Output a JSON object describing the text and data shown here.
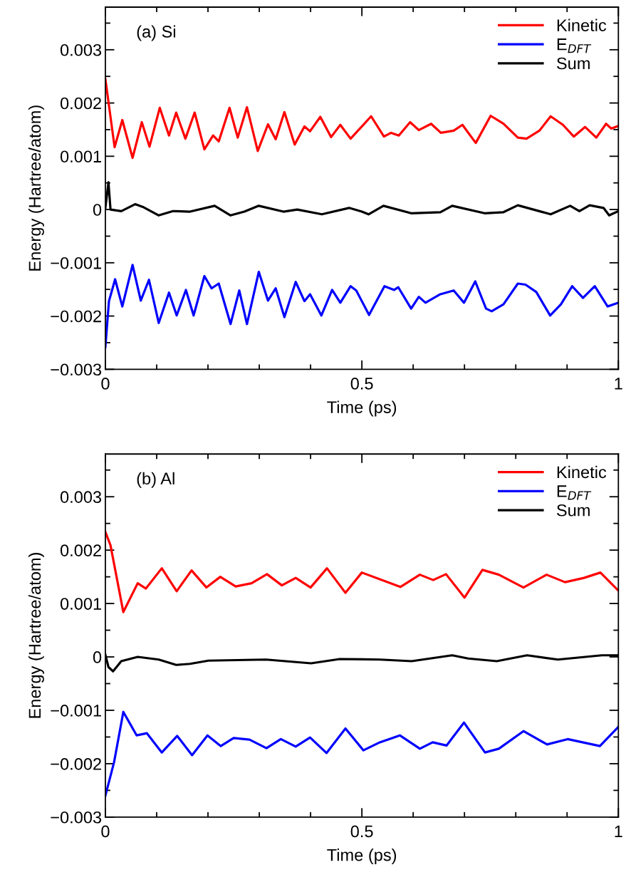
{
  "chart_data": [
    {
      "type": "line",
      "xlabel": "Time (ps)",
      "ylabel": "Energy (Hartree/atom)",
      "annotations": [
        "(a) Si"
      ],
      "xlim": [
        0,
        1
      ],
      "ylim": [
        -0.003,
        0.0038
      ],
      "xticks": [
        0,
        {
          "value": 0.1,
          "label": null
        },
        {
          "value": 0.2,
          "label": null
        },
        {
          "value": 0.3,
          "label": null
        },
        {
          "value": 0.4,
          "label": null
        },
        0.5,
        {
          "value": 0.6,
          "label": null
        },
        {
          "value": 0.7,
          "label": null
        },
        {
          "value": 0.8,
          "label": null
        },
        {
          "value": 0.9,
          "label": null
        },
        1
      ],
      "yticks": [
        {
          "value": -0.003,
          "label": "−0.003"
        },
        {
          "value": -0.0025,
          "label": null
        },
        {
          "value": -0.002,
          "label": "−0.002"
        },
        {
          "value": -0.0015,
          "label": null
        },
        {
          "value": -0.001,
          "label": "−0.001"
        },
        {
          "value": -0.0005,
          "label": null
        },
        0,
        {
          "value": 0.0005,
          "label": null
        },
        0.001,
        {
          "value": 0.0015,
          "label": null
        },
        0.002,
        {
          "value": 0.0025,
          "label": null
        },
        0.003,
        {
          "value": 0.0035,
          "label": null
        }
      ],
      "grid": false,
      "legend": "top right",
      "marker": "none",
      "line_style": "solid",
      "series": [
        {
          "name": "Kinetic",
          "color": "#ff0000",
          "x": [
            0,
            0.018,
            0.033,
            0.053,
            0.071,
            0.086,
            0.106,
            0.124,
            0.138,
            0.156,
            0.174,
            0.193,
            0.21,
            0.221,
            0.242,
            0.258,
            0.276,
            0.297,
            0.317,
            0.332,
            0.349,
            0.369,
            0.388,
            0.399,
            0.419,
            0.44,
            0.458,
            0.478,
            0.518,
            0.543,
            0.557,
            0.572,
            0.594,
            0.611,
            0.635,
            0.654,
            0.679,
            0.696,
            0.722,
            0.751,
            0.776,
            0.804,
            0.821,
            0.846,
            0.868,
            0.892,
            0.913,
            0.935,
            0.957,
            0.976,
            0.986,
            1
          ],
          "values": [
            0.00245,
            0.00117,
            0.00168,
            0.00097,
            0.00164,
            0.00118,
            0.00191,
            0.00139,
            0.00182,
            0.00133,
            0.00182,
            0.00113,
            0.00139,
            0.00128,
            0.00191,
            0.00135,
            0.00192,
            0.0011,
            0.0016,
            0.00132,
            0.00183,
            0.00122,
            0.00156,
            0.00147,
            0.00174,
            0.00136,
            0.00159,
            0.00133,
            0.00175,
            0.00137,
            0.00144,
            0.00139,
            0.00164,
            0.00149,
            0.00161,
            0.00144,
            0.00148,
            0.00159,
            0.00125,
            0.00176,
            0.00161,
            0.00135,
            0.00133,
            0.00148,
            0.00175,
            0.00159,
            0.00137,
            0.00155,
            0.00135,
            0.00161,
            0.00152,
            0.00157
          ]
        },
        {
          "name": "E$_{DFT}$",
          "color": "#0000ff",
          "x": [
            0,
            0.007,
            0.019,
            0.033,
            0.053,
            0.069,
            0.085,
            0.104,
            0.124,
            0.139,
            0.157,
            0.172,
            0.193,
            0.207,
            0.221,
            0.244,
            0.261,
            0.276,
            0.299,
            0.317,
            0.332,
            0.349,
            0.371,
            0.388,
            0.399,
            0.421,
            0.442,
            0.458,
            0.478,
            0.489,
            0.514,
            0.544,
            0.563,
            0.571,
            0.596,
            0.611,
            0.624,
            0.653,
            0.679,
            0.699,
            0.721,
            0.742,
            0.753,
            0.776,
            0.804,
            0.819,
            0.84,
            0.867,
            0.888,
            0.91,
            0.931,
            0.954,
            0.979,
            1
          ],
          "values": [
            -0.00258,
            -0.00172,
            -0.00131,
            -0.00182,
            -0.00104,
            -0.00171,
            -0.00132,
            -0.00213,
            -0.00156,
            -0.00199,
            -0.00151,
            -0.00199,
            -0.00125,
            -0.00148,
            -0.00139,
            -0.00215,
            -0.00152,
            -0.00215,
            -0.00117,
            -0.00171,
            -0.00148,
            -0.00202,
            -0.00136,
            -0.00172,
            -0.00159,
            -0.00199,
            -0.00151,
            -0.00175,
            -0.00144,
            -0.00152,
            -0.00198,
            -0.00144,
            -0.00151,
            -0.00146,
            -0.00186,
            -0.00164,
            -0.00175,
            -0.00159,
            -0.00152,
            -0.00175,
            -0.00135,
            -0.00186,
            -0.00191,
            -0.00178,
            -0.00139,
            -0.00141,
            -0.00155,
            -0.00199,
            -0.00178,
            -0.00144,
            -0.00166,
            -0.00144,
            -0.00182,
            -0.00175
          ]
        },
        {
          "name": "Sum",
          "color": "#000000",
          "x": [
            0,
            0.006,
            0.01,
            0.031,
            0.058,
            0.075,
            0.104,
            0.132,
            0.165,
            0.213,
            0.244,
            0.271,
            0.299,
            0.347,
            0.374,
            0.422,
            0.475,
            0.5,
            0.513,
            0.542,
            0.596,
            0.653,
            0.676,
            0.739,
            0.776,
            0.804,
            0.868,
            0.906,
            0.924,
            0.944,
            0.971,
            0.982,
            1
          ],
          "values": [
            3e-05,
            0.00051,
            0,
            -3e-05,
            0.0001,
            4e-05,
            -0.00011,
            -3e-05,
            -4e-05,
            7e-05,
            -0.00011,
            -4e-05,
            7e-05,
            -4e-05,
            0,
            -9e-05,
            3e-05,
            -4e-05,
            -9e-05,
            7e-05,
            -7e-05,
            -5e-05,
            7e-05,
            -7e-05,
            -5e-05,
            8e-05,
            -9e-05,
            7e-05,
            -3e-05,
            8e-05,
            3e-05,
            -0.00011,
            -3e-05
          ]
        }
      ]
    },
    {
      "type": "line",
      "xlabel": "Time (ps)",
      "ylabel": "Energy (Hartree/atom)",
      "annotations": [
        "(b) Al"
      ],
      "xlim": [
        0,
        1
      ],
      "ylim": [
        -0.003,
        0.0038
      ],
      "xticks": [
        0,
        {
          "value": 0.1,
          "label": null
        },
        {
          "value": 0.2,
          "label": null
        },
        {
          "value": 0.3,
          "label": null
        },
        {
          "value": 0.4,
          "label": null
        },
        0.5,
        {
          "value": 0.6,
          "label": null
        },
        {
          "value": 0.7,
          "label": null
        },
        {
          "value": 0.8,
          "label": null
        },
        {
          "value": 0.9,
          "label": null
        },
        1
      ],
      "yticks": [
        {
          "value": -0.003,
          "label": "−0.003"
        },
        {
          "value": -0.0025,
          "label": null
        },
        {
          "value": -0.002,
          "label": "−0.002"
        },
        {
          "value": -0.0015,
          "label": null
        },
        {
          "value": -0.001,
          "label": "−0.001"
        },
        {
          "value": -0.0005,
          "label": null
        },
        0,
        {
          "value": 0.0005,
          "label": null
        },
        0.001,
        {
          "value": 0.0015,
          "label": null
        },
        0.002,
        {
          "value": 0.0025,
          "label": null
        },
        0.003,
        {
          "value": 0.0035,
          "label": null
        }
      ],
      "grid": false,
      "legend": "top right",
      "marker": "none",
      "line_style": "solid",
      "series": [
        {
          "name": "Kinetic",
          "color": "#ff0000",
          "x": [
            0,
            0.01,
            0.035,
            0.063,
            0.079,
            0.11,
            0.139,
            0.168,
            0.197,
            0.224,
            0.254,
            0.285,
            0.315,
            0.344,
            0.371,
            0.4,
            0.432,
            0.468,
            0.5,
            0.575,
            0.613,
            0.639,
            0.664,
            0.7,
            0.735,
            0.767,
            0.815,
            0.86,
            0.896,
            0.933,
            0.965,
            1
          ],
          "values": [
            0.00234,
            0.00209,
            0.00084,
            0.00138,
            0.00128,
            0.00166,
            0.00123,
            0.00162,
            0.0013,
            0.0015,
            0.00132,
            0.00138,
            0.00155,
            0.00134,
            0.00148,
            0.0013,
            0.00166,
            0.0012,
            0.00158,
            0.00131,
            0.00154,
            0.00144,
            0.00155,
            0.00111,
            0.00163,
            0.00154,
            0.0013,
            0.00154,
            0.0014,
            0.00148,
            0.00158,
            0.00124
          ]
        },
        {
          "name": "E$_{DFT}$",
          "color": "#0000ff",
          "x": [
            0,
            0.017,
            0.035,
            0.061,
            0.081,
            0.11,
            0.14,
            0.169,
            0.199,
            0.225,
            0.25,
            0.281,
            0.314,
            0.342,
            0.371,
            0.399,
            0.431,
            0.468,
            0.503,
            0.535,
            0.574,
            0.613,
            0.638,
            0.665,
            0.699,
            0.74,
            0.767,
            0.815,
            0.861,
            0.901,
            0.964,
            1
          ],
          "values": [
            -0.0026,
            -0.00197,
            -0.00103,
            -0.00147,
            -0.00143,
            -0.00179,
            -0.00148,
            -0.00184,
            -0.00147,
            -0.00167,
            -0.00152,
            -0.00155,
            -0.00171,
            -0.00154,
            -0.00168,
            -0.00151,
            -0.0018,
            -0.00134,
            -0.00175,
            -0.0016,
            -0.00147,
            -0.00172,
            -0.0016,
            -0.00166,
            -0.00123,
            -0.00179,
            -0.00172,
            -0.00139,
            -0.00164,
            -0.00154,
            -0.00167,
            -0.00131
          ]
        },
        {
          "name": "Sum",
          "color": "#000000",
          "x": [
            0,
            0.006,
            0.015,
            0.031,
            0.063,
            0.104,
            0.138,
            0.165,
            0.201,
            0.313,
            0.401,
            0.457,
            0.535,
            0.597,
            0.676,
            0.707,
            0.763,
            0.822,
            0.882,
            0.968,
            1
          ],
          "values": [
            4e-05,
            -0.00019,
            -0.00027,
            -8e-05,
            0,
            -5e-05,
            -0.00015,
            -0.00013,
            -7e-05,
            -5e-05,
            -0.00012,
            -4e-05,
            -5e-05,
            -8e-05,
            3e-05,
            -3e-05,
            -8e-05,
            3e-05,
            -5e-05,
            3e-05,
            3e-05
          ]
        }
      ]
    }
  ]
}
